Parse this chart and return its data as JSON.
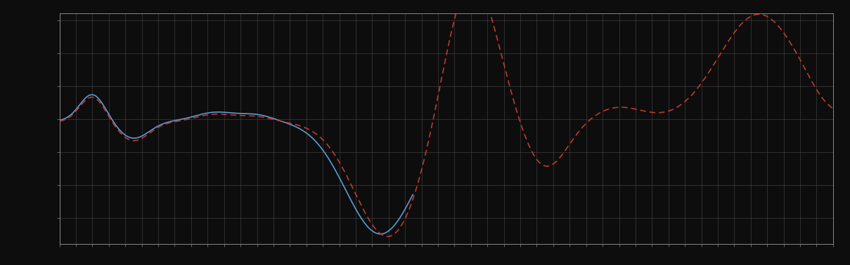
{
  "background_color": "#0d0d0d",
  "plot_bg_color": "#0d0d0d",
  "grid_color": "#4a4a4a",
  "line1_color": "#5b9bd5",
  "line2_color": "#c0392b",
  "line1_style": "solid",
  "line2_style": "dashed",
  "line_width": 1.2,
  "xlim": [
    0,
    47
  ],
  "ylim": [
    -1.2,
    3.5
  ],
  "spine_color": "#888888",
  "tick_color": "#888888",
  "dashes": [
    5,
    3
  ]
}
